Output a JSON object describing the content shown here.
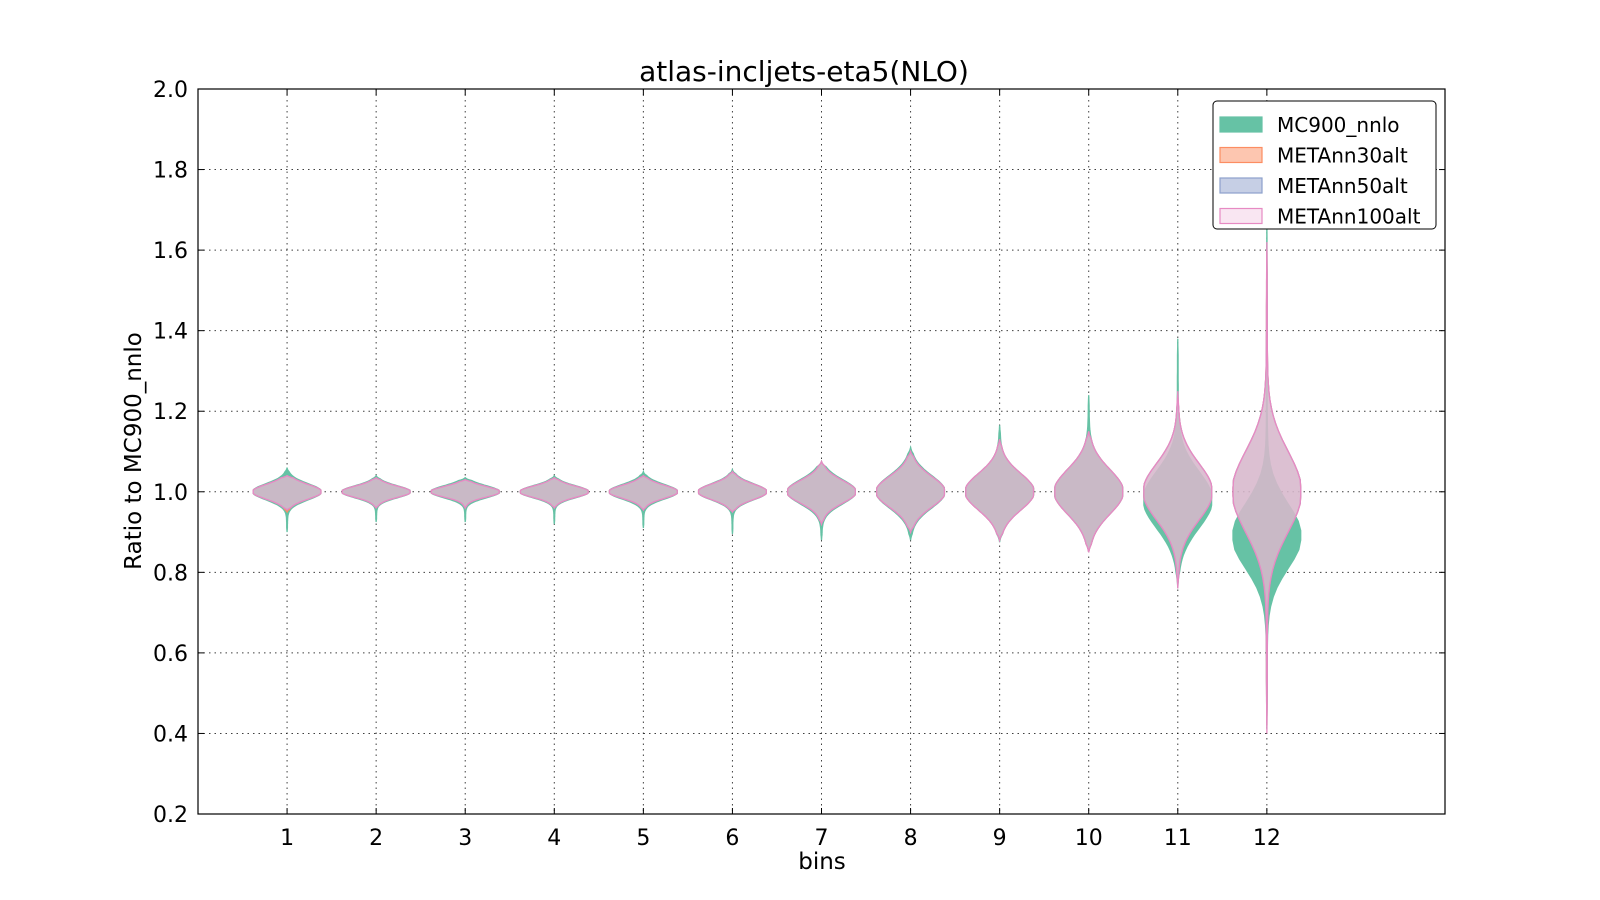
{
  "chart_data": {
    "type": "violin",
    "title": "atlas-incljets-eta5(NLO)",
    "xlabel": "bins",
    "ylabel": "Ratio to MC900_nnlo",
    "xlim": [
      0,
      14
    ],
    "ylim": [
      0.2,
      2.0
    ],
    "xticks": [
      1,
      2,
      3,
      4,
      5,
      6,
      7,
      8,
      9,
      10,
      11,
      12
    ],
    "yticks": [
      0.2,
      0.4,
      0.6,
      0.8,
      1.0,
      1.2,
      1.4,
      1.6,
      1.8,
      2.0
    ],
    "grid": true,
    "legend_position": "top-right",
    "series": [
      {
        "name": "MC900_nnlo",
        "color": "#66c2a5",
        "edge": "#66c2a5",
        "alpha": 1.0,
        "violins": [
          {
            "bin": 1,
            "center": 1.0,
            "low": 0.9,
            "high": 1.06,
            "sigma": 0.02
          },
          {
            "bin": 2,
            "center": 1.0,
            "low": 0.925,
            "high": 1.04,
            "sigma": 0.015
          },
          {
            "bin": 3,
            "center": 1.0,
            "low": 0.925,
            "high": 1.035,
            "sigma": 0.015
          },
          {
            "bin": 4,
            "center": 1.0,
            "low": 0.92,
            "high": 1.04,
            "sigma": 0.015
          },
          {
            "bin": 5,
            "center": 1.0,
            "low": 0.91,
            "high": 1.05,
            "sigma": 0.018
          },
          {
            "bin": 6,
            "center": 1.0,
            "low": 0.895,
            "high": 1.055,
            "sigma": 0.02
          },
          {
            "bin": 7,
            "center": 1.0,
            "low": 0.88,
            "high": 1.075,
            "sigma": 0.03
          },
          {
            "bin": 8,
            "center": 1.0,
            "low": 0.88,
            "high": 1.11,
            "sigma": 0.04
          },
          {
            "bin": 9,
            "center": 1.0,
            "low": 0.875,
            "high": 1.165,
            "sigma": 0.045
          },
          {
            "bin": 10,
            "center": 1.0,
            "low": 0.85,
            "high": 1.24,
            "sigma": 0.055
          },
          {
            "bin": 11,
            "center": 0.98,
            "low": 0.76,
            "high": 1.38,
            "sigma": 0.07
          },
          {
            "bin": 12,
            "center": 0.89,
            "low": 0.41,
            "high": 1.82,
            "sigma": 0.08
          }
        ]
      },
      {
        "name": "METAnn30alt",
        "color": "#fc8d62",
        "edge": "#fc8d62",
        "alpha": 0.5,
        "violins": [
          {
            "bin": 1,
            "center": 1.0,
            "low": 0.95,
            "high": 1.04,
            "sigma": 0.018
          },
          {
            "bin": 2,
            "center": 1.0,
            "low": 0.96,
            "high": 1.035,
            "sigma": 0.014
          },
          {
            "bin": 3,
            "center": 1.0,
            "low": 0.96,
            "high": 1.03,
            "sigma": 0.013
          },
          {
            "bin": 4,
            "center": 1.0,
            "low": 0.96,
            "high": 1.035,
            "sigma": 0.014
          },
          {
            "bin": 5,
            "center": 1.0,
            "low": 0.955,
            "high": 1.04,
            "sigma": 0.016
          },
          {
            "bin": 6,
            "center": 1.0,
            "low": 0.95,
            "high": 1.05,
            "sigma": 0.019
          },
          {
            "bin": 7,
            "center": 1.0,
            "low": 0.92,
            "high": 1.075,
            "sigma": 0.028
          },
          {
            "bin": 8,
            "center": 1.0,
            "low": 0.9,
            "high": 1.1,
            "sigma": 0.038
          },
          {
            "bin": 9,
            "center": 1.0,
            "low": 0.88,
            "high": 1.13,
            "sigma": 0.045
          },
          {
            "bin": 10,
            "center": 1.0,
            "low": 0.85,
            "high": 1.15,
            "sigma": 0.055
          },
          {
            "bin": 11,
            "center": 1.0,
            "low": 0.77,
            "high": 1.24,
            "sigma": 0.07
          },
          {
            "bin": 12,
            "center": 1.0,
            "low": 0.42,
            "high": 1.6,
            "sigma": 0.1
          }
        ]
      },
      {
        "name": "METAnn50alt",
        "color": "#8da0cb",
        "edge": "#8da0cb",
        "alpha": 0.5,
        "violins": [
          {
            "bin": 1,
            "center": 1.0,
            "low": 0.955,
            "high": 1.04,
            "sigma": 0.018
          },
          {
            "bin": 2,
            "center": 1.0,
            "low": 0.96,
            "high": 1.035,
            "sigma": 0.014
          },
          {
            "bin": 3,
            "center": 1.0,
            "low": 0.96,
            "high": 1.03,
            "sigma": 0.013
          },
          {
            "bin": 4,
            "center": 1.0,
            "low": 0.96,
            "high": 1.035,
            "sigma": 0.014
          },
          {
            "bin": 5,
            "center": 1.0,
            "low": 0.955,
            "high": 1.04,
            "sigma": 0.016
          },
          {
            "bin": 6,
            "center": 1.0,
            "low": 0.95,
            "high": 1.05,
            "sigma": 0.019
          },
          {
            "bin": 7,
            "center": 1.0,
            "low": 0.92,
            "high": 1.075,
            "sigma": 0.028
          },
          {
            "bin": 8,
            "center": 1.0,
            "low": 0.9,
            "high": 1.1,
            "sigma": 0.038
          },
          {
            "bin": 9,
            "center": 1.0,
            "low": 0.88,
            "high": 1.13,
            "sigma": 0.045
          },
          {
            "bin": 10,
            "center": 1.0,
            "low": 0.85,
            "high": 1.15,
            "sigma": 0.055
          },
          {
            "bin": 11,
            "center": 1.0,
            "low": 0.77,
            "high": 1.24,
            "sigma": 0.07
          },
          {
            "bin": 12,
            "center": 1.0,
            "low": 0.42,
            "high": 1.6,
            "sigma": 0.1
          }
        ]
      },
      {
        "name": "METAnn100alt",
        "color": "#f4cde6",
        "edge": "#e78ac3",
        "alpha": 0.5,
        "violins": [
          {
            "bin": 1,
            "center": 1.0,
            "low": 0.955,
            "high": 1.04,
            "sigma": 0.018
          },
          {
            "bin": 2,
            "center": 1.0,
            "low": 0.96,
            "high": 1.035,
            "sigma": 0.014
          },
          {
            "bin": 3,
            "center": 1.0,
            "low": 0.96,
            "high": 1.03,
            "sigma": 0.013
          },
          {
            "bin": 4,
            "center": 1.0,
            "low": 0.96,
            "high": 1.035,
            "sigma": 0.014
          },
          {
            "bin": 5,
            "center": 1.0,
            "low": 0.955,
            "high": 1.04,
            "sigma": 0.016
          },
          {
            "bin": 6,
            "center": 1.0,
            "low": 0.95,
            "high": 1.05,
            "sigma": 0.019
          },
          {
            "bin": 7,
            "center": 1.0,
            "low": 0.92,
            "high": 1.075,
            "sigma": 0.028
          },
          {
            "bin": 8,
            "center": 1.0,
            "low": 0.9,
            "high": 1.1,
            "sigma": 0.038
          },
          {
            "bin": 9,
            "center": 1.0,
            "low": 0.88,
            "high": 1.13,
            "sigma": 0.045
          },
          {
            "bin": 10,
            "center": 1.0,
            "low": 0.85,
            "high": 1.15,
            "sigma": 0.055
          },
          {
            "bin": 11,
            "center": 1.0,
            "low": 0.76,
            "high": 1.25,
            "sigma": 0.07
          },
          {
            "bin": 12,
            "center": 1.0,
            "low": 0.4,
            "high": 1.62,
            "sigma": 0.1
          }
        ]
      }
    ]
  }
}
